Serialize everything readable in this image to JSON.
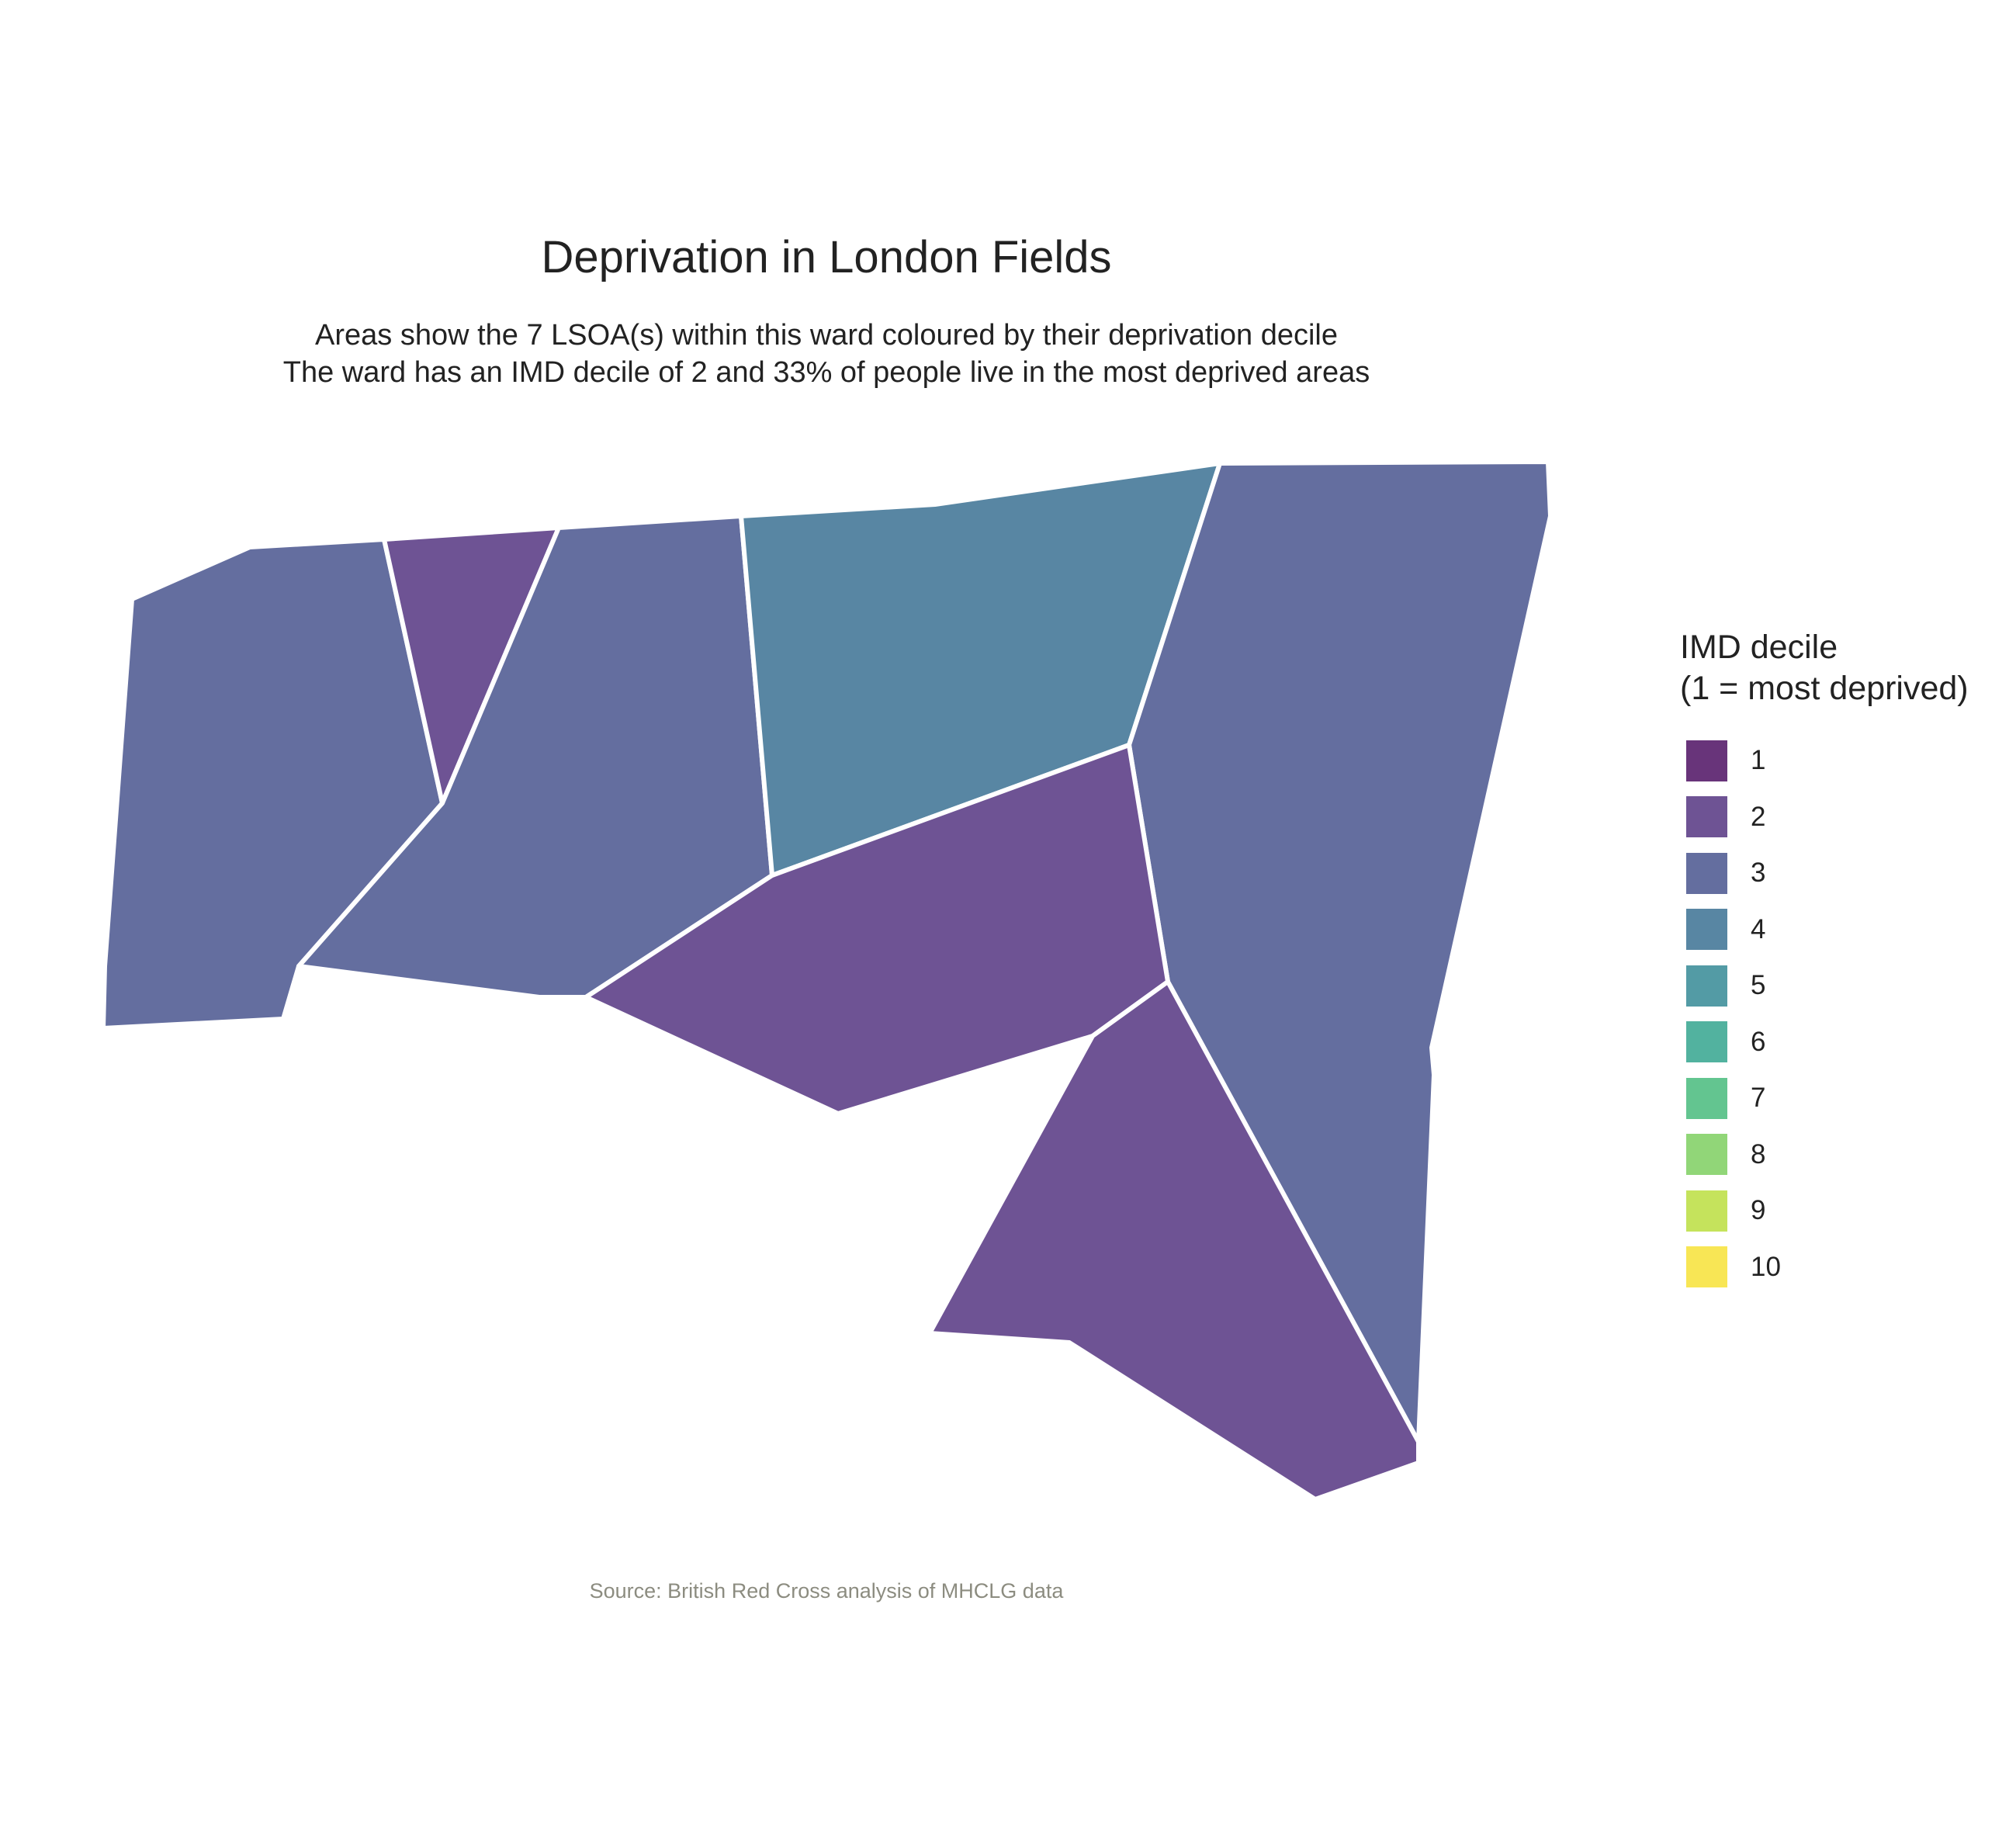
{
  "title": "Deprivation in London Fields",
  "subtitle_lines": [
    "Areas show the 7 LSOA(s) within this ward coloured by their deprivation decile",
    "The ward has an IMD decile of 2 and 33% of people live in the most deprived areas"
  ],
  "caption": "Source: British Red Cross analysis of MHCLG data",
  "legend": {
    "title_lines": [
      "IMD decile",
      "(1 = most deprived)"
    ],
    "items": [
      {
        "label": "1",
        "color": "#68347a"
      },
      {
        "label": "2",
        "color": "#6e5394"
      },
      {
        "label": "3",
        "color": "#646e9f"
      },
      {
        "label": "4",
        "color": "#5886a3"
      },
      {
        "label": "5",
        "color": "#539ba5"
      },
      {
        "label": "6",
        "color": "#52b29f"
      },
      {
        "label": "7",
        "color": "#63c590"
      },
      {
        "label": "8",
        "color": "#91d678"
      },
      {
        "label": "9",
        "color": "#c5e35c"
      },
      {
        "label": "10",
        "color": "#f8e655"
      }
    ]
  },
  "areas": [
    {
      "id": "lsoa-west",
      "decile": 3
    },
    {
      "id": "lsoa-wedge",
      "decile": 2
    },
    {
      "id": "lsoa-central-west",
      "decile": 3
    },
    {
      "id": "lsoa-north",
      "decile": 4
    },
    {
      "id": "lsoa-east",
      "decile": 3
    },
    {
      "id": "lsoa-central-south",
      "decile": 2
    },
    {
      "id": "lsoa-south-east",
      "decile": 2
    }
  ]
}
